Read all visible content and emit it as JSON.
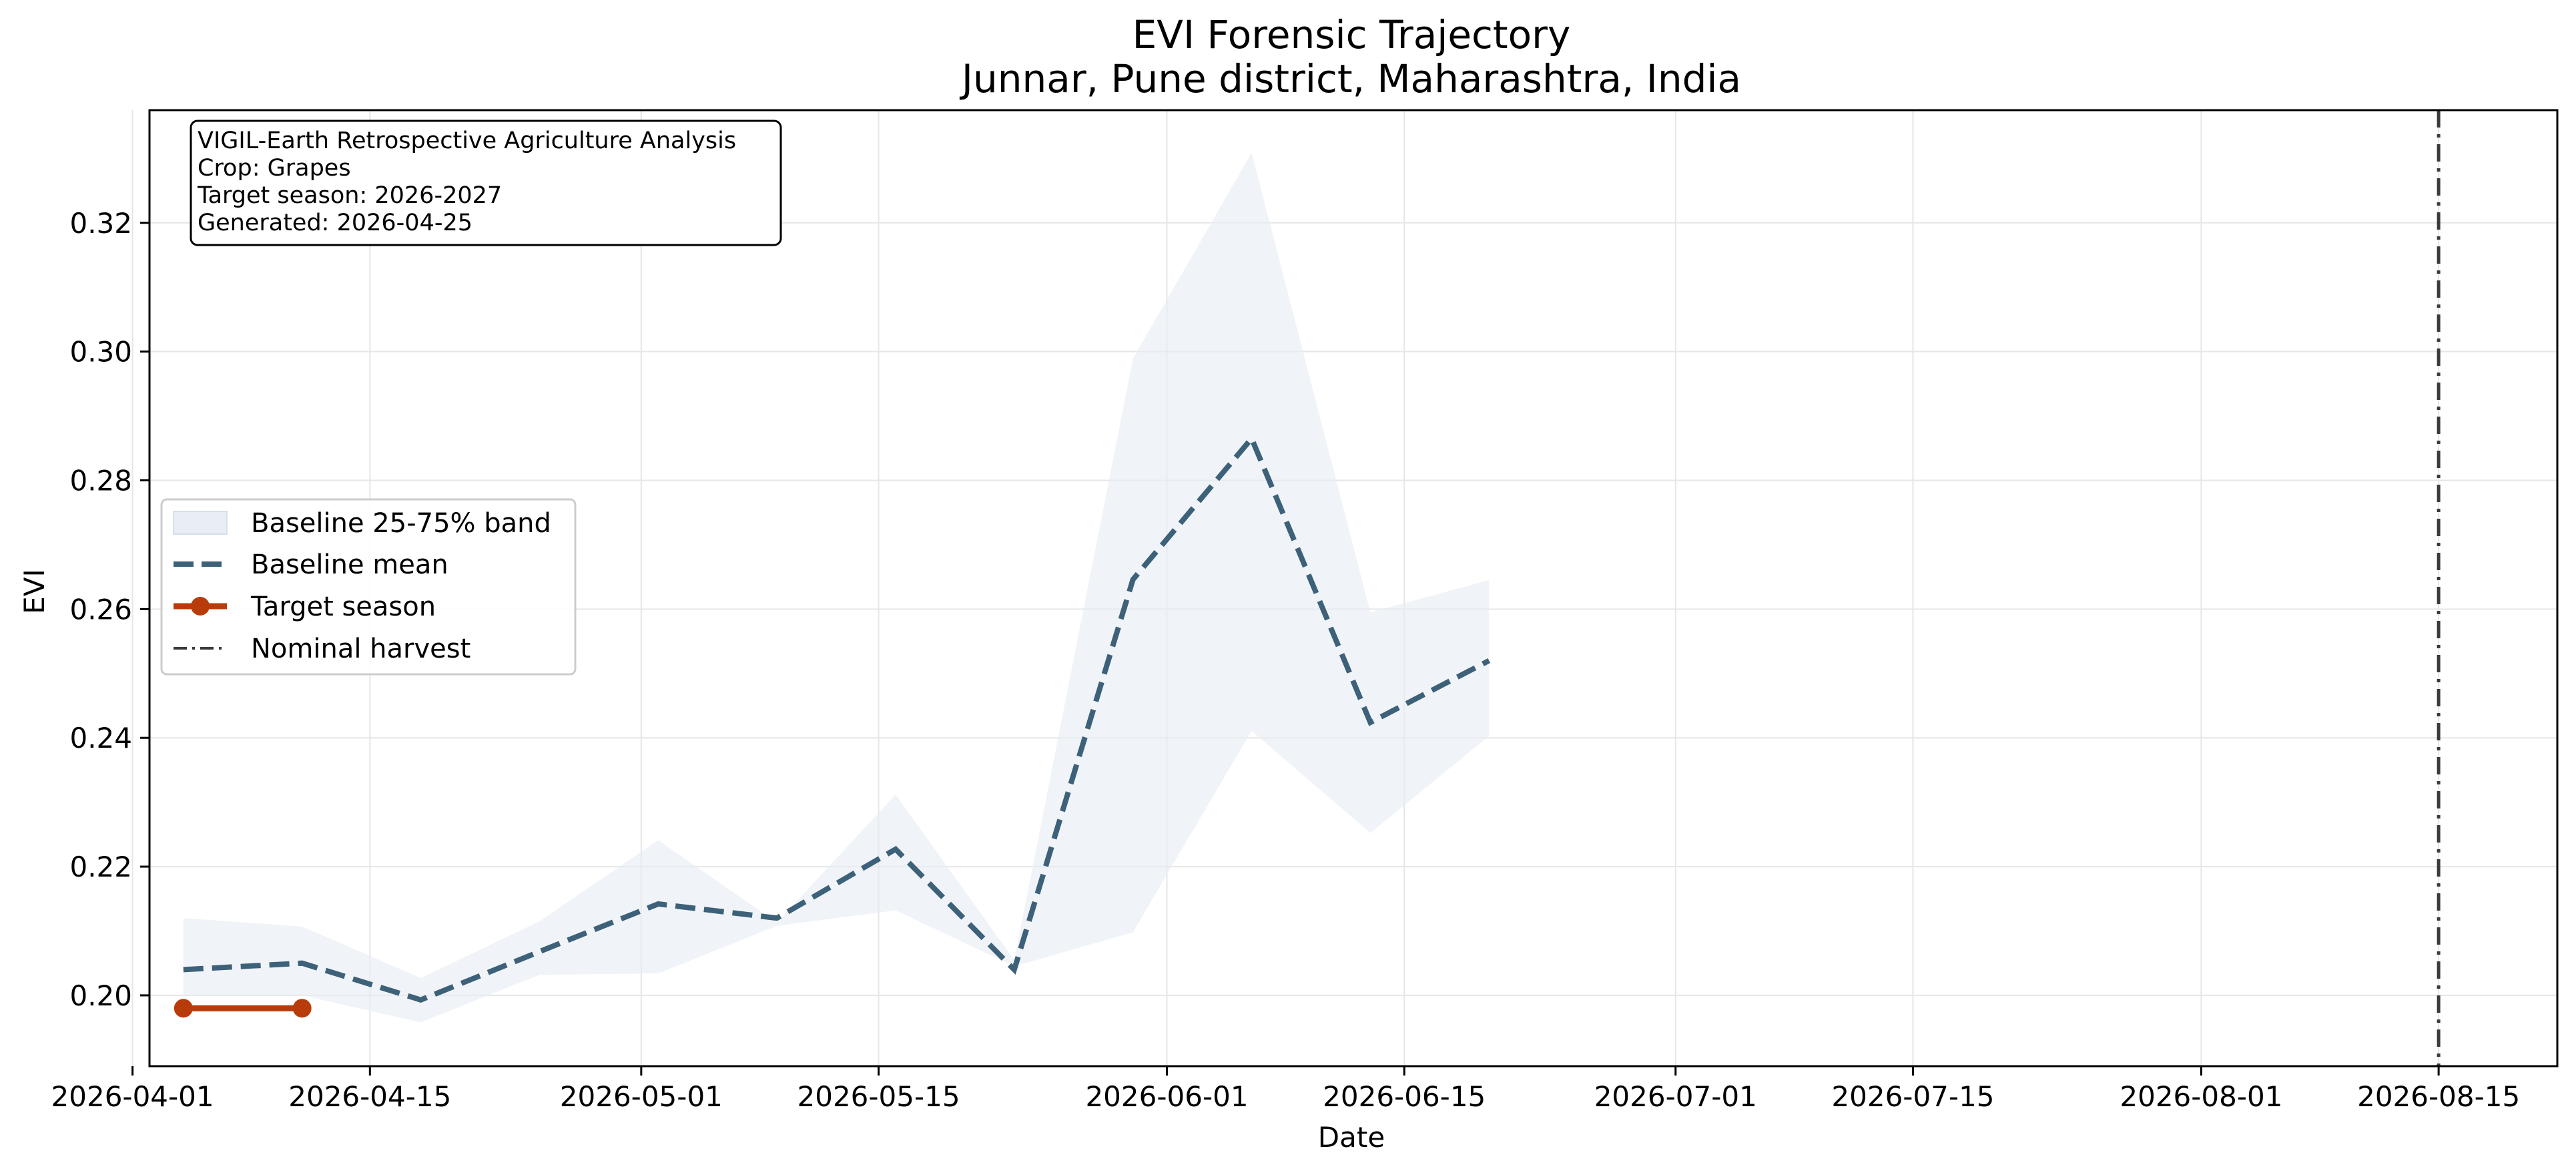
{
  "chart_data": {
    "type": "line",
    "title": "EVI Forensic Trajectory",
    "subtitle": "Junnar, Pune district, Maharashtra, India",
    "xlabel": "Date",
    "ylabel": "EVI",
    "xlim": [
      "2026-04-02",
      "2026-08-22"
    ],
    "ylim": [
      0.189,
      0.3375
    ],
    "grid": true,
    "legend_position": "center-left",
    "x_ticks": [
      "2026-04-01",
      "2026-04-15",
      "2026-05-01",
      "2026-05-15",
      "2026-06-01",
      "2026-06-15",
      "2026-07-01",
      "2026-07-15",
      "2026-08-01",
      "2026-08-15"
    ],
    "y_ticks": [
      0.2,
      0.22,
      0.24,
      0.26,
      0.28,
      0.3,
      0.32
    ],
    "info_box": [
      "VIGIL-Earth Retrospective Agriculture Analysis",
      "Crop: Grapes",
      "Target season: 2026-2027",
      "Generated: 2026-04-25"
    ],
    "baseline_dates": [
      "2026-04-04",
      "2026-04-11",
      "2026-04-18",
      "2026-04-25",
      "2026-05-02",
      "2026-05-09",
      "2026-05-16",
      "2026-05-23",
      "2026-05-30",
      "2026-06-06",
      "2026-06-13",
      "2026-06-20"
    ],
    "baseline_mean": [
      0.204,
      0.205,
      0.1993,
      0.2068,
      0.2142,
      0.212,
      0.2227,
      0.204,
      0.2646,
      0.2865,
      0.2424,
      0.252
    ],
    "baseline_p25": [
      0.2,
      0.2,
      0.1958,
      0.2032,
      0.2034,
      0.2108,
      0.2132,
      0.2045,
      0.2098,
      0.2411,
      0.2252,
      0.2403
    ],
    "baseline_p75": [
      0.212,
      0.2107,
      0.2027,
      0.2115,
      0.2241,
      0.2113,
      0.2312,
      0.2055,
      0.2989,
      0.3309,
      0.2595,
      0.2645
    ],
    "target_dates": [
      "2026-04-04",
      "2026-04-11"
    ],
    "target_values": [
      0.198,
      0.198
    ],
    "nominal_harvest": "2026-08-15",
    "series": [
      {
        "name": "Baseline 25-75% band",
        "color": "#e8eef4"
      },
      {
        "name": "Baseline mean",
        "color": "#3d6178"
      },
      {
        "name": "Target season",
        "color": "#b83c0a"
      },
      {
        "name": "Nominal harvest",
        "color": "#3a3a3a"
      }
    ]
  }
}
